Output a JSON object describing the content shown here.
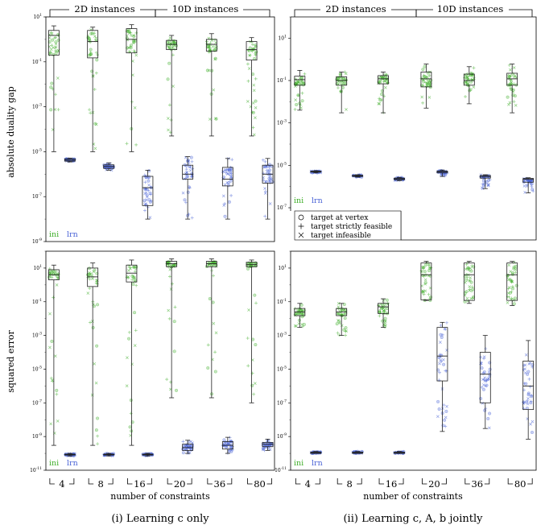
{
  "colors": {
    "ini": "#3fae2a",
    "lrn": "#4a63d6",
    "frame": "#000000"
  },
  "headers": {
    "left_group": "2D instances",
    "right_group": "10D instances"
  },
  "xlabel": "number of constraints",
  "categories": [
    "4",
    "8",
    "16",
    "20",
    "36",
    "80"
  ],
  "ylabels": {
    "top": "absolute duality gap",
    "bottom": "squared error"
  },
  "series_tags": {
    "ini": "ini",
    "lrn": "lrn"
  },
  "captions": {
    "left": "(i) Learning c only",
    "right": "(ii) Learning c, A, b jointly"
  },
  "legend": {
    "vertex": "target at vertex",
    "strict": "target strictly feasible",
    "infeasible": "target infeasible"
  },
  "chart_data": [
    {
      "type": "box",
      "panel": "top-left",
      "ylabel": "absolute duality gap",
      "yscale": "log",
      "ylim": [
        1e-09,
        10
      ],
      "ytick_labels": [
        "10^1",
        "10^-1",
        "10^-3",
        "10^-5",
        "10^-7",
        "10^-9"
      ],
      "categories": [
        "4",
        "8",
        "16",
        "20",
        "36",
        "80"
      ],
      "series": [
        {
          "name": "ini",
          "boxes": [
            {
              "cat": "4",
              "whislo": 1e-05,
              "q1": 0.2,
              "med": 1.5,
              "q3": 2.5,
              "whishi": 4
            },
            {
              "cat": "8",
              "whislo": 1e-05,
              "q1": 0.15,
              "med": 0.8,
              "q3": 2.5,
              "whishi": 3.5
            },
            {
              "cat": "16",
              "whislo": 1e-05,
              "q1": 0.25,
              "med": 1.0,
              "q3": 3.0,
              "whishi": 4.5
            },
            {
              "cat": "20",
              "whislo": 5e-05,
              "q1": 0.35,
              "med": 0.6,
              "q3": 0.9,
              "whishi": 1.5
            },
            {
              "cat": "36",
              "whislo": 5e-05,
              "q1": 0.3,
              "med": 0.6,
              "q3": 1.0,
              "whishi": 1.8
            },
            {
              "cat": "80",
              "whislo": 5e-05,
              "q1": 0.12,
              "med": 0.35,
              "q3": 0.8,
              "whishi": 1.2
            }
          ]
        },
        {
          "name": "lrn",
          "boxes": [
            {
              "cat": "4",
              "whislo": 3.5e-06,
              "q1": 3.8e-06,
              "med": 4.2e-06,
              "q3": 4.8e-06,
              "whishi": 5.2e-06
            },
            {
              "cat": "8",
              "whislo": 1.5e-06,
              "q1": 1.8e-06,
              "med": 2.2e-06,
              "q3": 2.6e-06,
              "whishi": 3.2e-06
            },
            {
              "cat": "16",
              "whislo": 1e-08,
              "q1": 4e-08,
              "med": 2.5e-07,
              "q3": 8e-07,
              "whishi": 1.5e-06
            },
            {
              "cat": "20",
              "whislo": 1e-08,
              "q1": 6e-07,
              "med": 1e-06,
              "q3": 2.5e-06,
              "whishi": 6e-06
            },
            {
              "cat": "36",
              "whislo": 1e-08,
              "q1": 3e-07,
              "med": 6e-07,
              "q3": 2e-06,
              "whishi": 5e-06
            },
            {
              "cat": "80",
              "whislo": 1e-08,
              "q1": 4e-07,
              "med": 1e-06,
              "q3": 2.5e-06,
              "whishi": 5e-06
            }
          ]
        }
      ]
    },
    {
      "type": "box",
      "panel": "top-right",
      "ylabel": "",
      "yscale": "log",
      "ylim": [
        1e-07,
        100
      ],
      "ytick_labels": [
        "10^1",
        "10^-1",
        "10^-3",
        "10^-5",
        "10^-7"
      ],
      "categories": [
        "4",
        "8",
        "16",
        "20",
        "36",
        "80"
      ],
      "series": [
        {
          "name": "ini",
          "boxes": [
            {
              "cat": "4",
              "whislo": 0.004,
              "q1": 0.06,
              "med": 0.11,
              "q3": 0.16,
              "whishi": 0.3
            },
            {
              "cat": "8",
              "whislo": 0.003,
              "q1": 0.06,
              "med": 0.1,
              "q3": 0.15,
              "whishi": 0.25
            },
            {
              "cat": "16",
              "whislo": 0.003,
              "q1": 0.07,
              "med": 0.12,
              "q3": 0.17,
              "whishi": 0.25
            },
            {
              "cat": "20",
              "whislo": 0.005,
              "q1": 0.05,
              "med": 0.12,
              "q3": 0.25,
              "whishi": 0.6
            },
            {
              "cat": "36",
              "whislo": 0.008,
              "q1": 0.06,
              "med": 0.1,
              "q3": 0.2,
              "whishi": 0.45
            },
            {
              "cat": "80",
              "whislo": 0.003,
              "q1": 0.06,
              "med": 0.12,
              "q3": 0.22,
              "whishi": 0.6
            }
          ]
        },
        {
          "name": "lrn",
          "boxes": [
            {
              "cat": "4",
              "whislo": 4.4e-06,
              "q1": 4.8e-06,
              "med": 5e-06,
              "q3": 5.3e-06,
              "whishi": 5.6e-06
            },
            {
              "cat": "8",
              "whislo": 2.8e-06,
              "q1": 3e-06,
              "med": 3.2e-06,
              "q3": 3.4e-06,
              "whishi": 3.6e-06
            },
            {
              "cat": "16",
              "whislo": 1.9e-06,
              "q1": 2.1e-06,
              "med": 2.3e-06,
              "q3": 2.5e-06,
              "whishi": 2.7e-06
            },
            {
              "cat": "20",
              "whislo": 3e-06,
              "q1": 4.4e-06,
              "med": 5e-06,
              "q3": 5.4e-06,
              "whishi": 6e-06
            },
            {
              "cat": "36",
              "whislo": 8e-07,
              "q1": 2.5e-06,
              "med": 3e-06,
              "q3": 3.3e-06,
              "whishi": 3.6e-06
            },
            {
              "cat": "80",
              "whislo": 5e-07,
              "q1": 1.6e-06,
              "med": 2.2e-06,
              "q3": 2.4e-06,
              "whishi": 2.6e-06
            }
          ]
        }
      ]
    },
    {
      "type": "box",
      "panel": "bottom-left",
      "ylabel": "squared error",
      "yscale": "log",
      "ylim": [
        1e-11,
        100
      ],
      "ytick_labels": [
        "10^1",
        "10^-1",
        "10^-3",
        "10^-5",
        "10^-7",
        "10^-9",
        "10^-11"
      ],
      "categories": [
        "4",
        "8",
        "16",
        "20",
        "36",
        "80"
      ],
      "series": [
        {
          "name": "ini",
          "boxes": [
            {
              "cat": "4",
              "whislo": 3e-10,
              "q1": 2,
              "med": 4,
              "q3": 8,
              "whishi": 15
            },
            {
              "cat": "8",
              "whislo": 3e-10,
              "q1": 0.8,
              "med": 3,
              "q3": 10,
              "whishi": 20
            },
            {
              "cat": "16",
              "whislo": 3e-10,
              "q1": 1.5,
              "med": 5,
              "q3": 15,
              "whishi": 30
            },
            {
              "cat": "20",
              "whislo": 2e-07,
              "q1": 12,
              "med": 18,
              "q3": 25,
              "whishi": 35
            },
            {
              "cat": "36",
              "whislo": 2e-07,
              "q1": 12,
              "med": 18,
              "q3": 25,
              "whishi": 35
            },
            {
              "cat": "80",
              "whislo": 1e-07,
              "q1": 12,
              "med": 16,
              "q3": 22,
              "whishi": 30
            }
          ]
        },
        {
          "name": "lrn",
          "boxes": [
            {
              "cat": "4",
              "whislo": 7e-11,
              "q1": 8e-11,
              "med": 8.5e-11,
              "q3": 9e-11,
              "whishi": 1e-10
            },
            {
              "cat": "8",
              "whislo": 7e-11,
              "q1": 8e-11,
              "med": 8.5e-11,
              "q3": 9e-11,
              "whishi": 1e-10
            },
            {
              "cat": "16",
              "whislo": 7e-11,
              "q1": 8e-11,
              "med": 8.5e-11,
              "q3": 9e-11,
              "whishi": 1e-10
            },
            {
              "cat": "20",
              "whislo": 1e-10,
              "q1": 1.5e-10,
              "med": 2.2e-10,
              "q3": 3.5e-10,
              "whishi": 6e-10
            },
            {
              "cat": "36",
              "whislo": 1e-10,
              "q1": 1.8e-10,
              "med": 3e-10,
              "q3": 5e-10,
              "whishi": 9e-10
            },
            {
              "cat": "80",
              "whislo": 1.5e-10,
              "q1": 2.5e-10,
              "med": 3.5e-10,
              "q3": 4.5e-10,
              "whishi": 7e-10
            }
          ]
        }
      ]
    },
    {
      "type": "box",
      "panel": "bottom-right",
      "ylabel": "",
      "yscale": "log",
      "ylim": [
        1e-11,
        100
      ],
      "ytick_labels": [
        "10^1",
        "10^-1",
        "10^-3",
        "10^-5",
        "10^-7",
        "10^-9",
        "10^-11"
      ],
      "categories": [
        "4",
        "8",
        "16",
        "20",
        "36",
        "80"
      ],
      "series": [
        {
          "name": "ini",
          "boxes": [
            {
              "cat": "4",
              "whislo": 0.003,
              "q1": 0.015,
              "med": 0.025,
              "q3": 0.04,
              "whishi": 0.08
            },
            {
              "cat": "8",
              "whislo": 0.001,
              "q1": 0.015,
              "med": 0.025,
              "q3": 0.04,
              "whishi": 0.08
            },
            {
              "cat": "16",
              "whislo": 0.003,
              "q1": 0.02,
              "med": 0.05,
              "q3": 0.08,
              "whishi": 0.15
            },
            {
              "cat": "20",
              "whislo": 0.12,
              "q1": 0.13,
              "med": 4,
              "q3": 20,
              "whishi": 25
            },
            {
              "cat": "36",
              "whislo": 0.08,
              "q1": 0.12,
              "med": 4,
              "q3": 20,
              "whishi": 25
            },
            {
              "cat": "80",
              "whislo": 0.06,
              "q1": 0.12,
              "med": 4,
              "q3": 20,
              "whishi": 25
            }
          ]
        },
        {
          "name": "lrn",
          "boxes": [
            {
              "cat": "4",
              "whislo": 1e-10,
              "q1": 1e-10,
              "med": 1.1e-10,
              "q3": 1.2e-10,
              "whishi": 1.3e-10
            },
            {
              "cat": "8",
              "whislo": 1e-10,
              "q1": 1e-10,
              "med": 1.1e-10,
              "q3": 1.2e-10,
              "whishi": 1.3e-10
            },
            {
              "cat": "16",
              "whislo": 1e-10,
              "q1": 1e-10,
              "med": 1.1e-10,
              "q3": 1.2e-10,
              "whishi": 1.3e-10
            },
            {
              "cat": "20",
              "whislo": 2e-09,
              "q1": 2e-06,
              "med": 6e-05,
              "q3": 0.003,
              "whishi": 0.006
            },
            {
              "cat": "36",
              "whislo": 3e-09,
              "q1": 1e-07,
              "med": 5e-06,
              "q3": 0.0001,
              "whishi": 0.001
            },
            {
              "cat": "80",
              "whislo": 7e-10,
              "q1": 4e-08,
              "med": 1e-06,
              "q3": 3e-05,
              "whishi": 0.0005
            }
          ]
        }
      ]
    }
  ]
}
